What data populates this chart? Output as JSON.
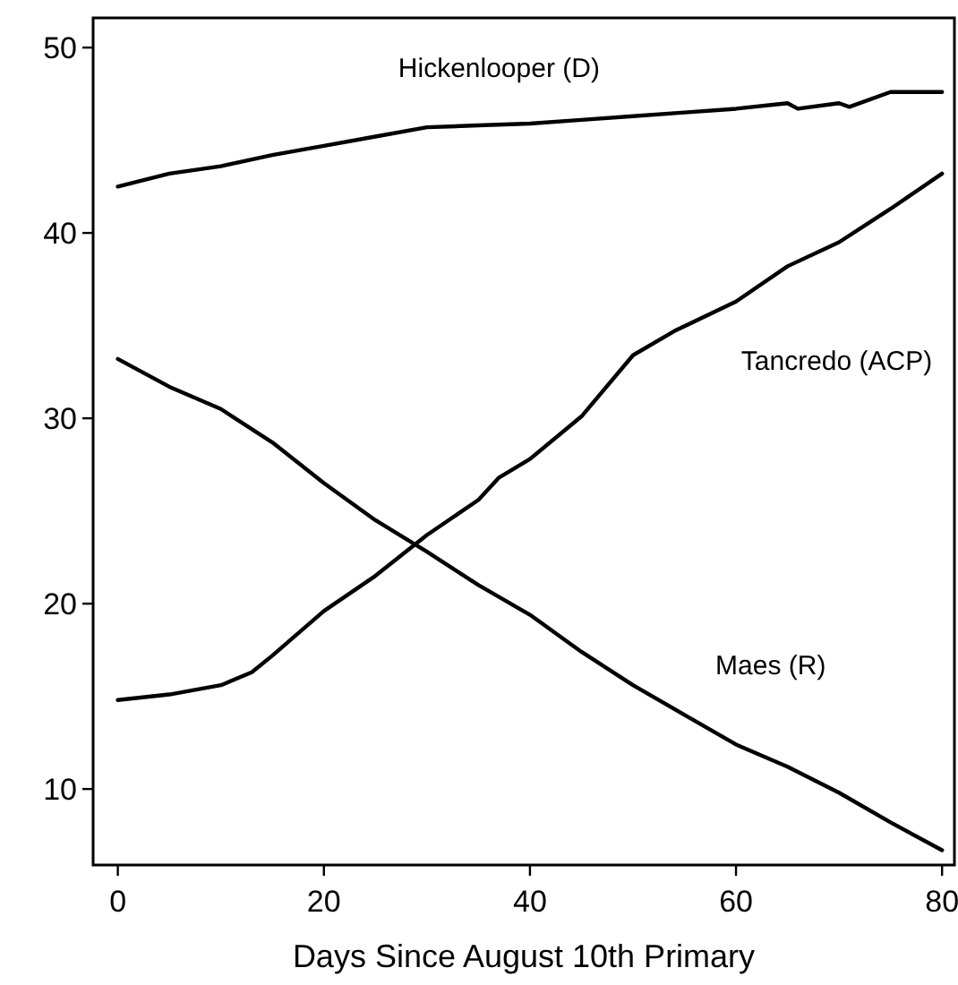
{
  "chart_data": {
    "type": "line",
    "xlabel": "Days Since August 10th Primary",
    "xlim": [
      -2.4,
      81.2
    ],
    "ylim": [
      5.9,
      51.6
    ],
    "xticks": [
      0,
      20,
      40,
      60,
      80
    ],
    "yticks": [
      10,
      20,
      30,
      40,
      50
    ],
    "grid": false,
    "line_style": "solid",
    "marker": "none",
    "series": [
      {
        "name": "Hickenlooper (D)",
        "color": "#000000",
        "x": [
          0,
          5,
          10,
          15,
          20,
          25,
          30,
          35,
          40,
          45,
          50,
          55,
          60,
          65,
          66,
          70,
          71,
          75,
          80
        ],
        "values": [
          42.5,
          43.2,
          43.6,
          44.2,
          44.7,
          45.2,
          45.7,
          45.8,
          45.9,
          46.1,
          46.3,
          46.5,
          46.7,
          47.0,
          46.7,
          47.0,
          46.8,
          47.6,
          47.6
        ]
      },
      {
        "name": "Tancredo (ACP)",
        "color": "#000000",
        "x": [
          0,
          5,
          10,
          13,
          15,
          20,
          25,
          30,
          35,
          37,
          40,
          45,
          50,
          54,
          60,
          65,
          70,
          75,
          80
        ],
        "values": [
          14.8,
          15.1,
          15.6,
          16.3,
          17.2,
          19.6,
          21.5,
          23.7,
          25.6,
          26.8,
          27.8,
          30.1,
          33.4,
          34.7,
          36.3,
          38.2,
          39.5,
          41.3,
          43.2
        ]
      },
      {
        "name": "Maes (R)",
        "color": "#000000",
        "x": [
          0,
          5,
          10,
          15,
          20,
          25,
          30,
          35,
          40,
          45,
          50,
          55,
          60,
          65,
          70,
          75,
          80
        ],
        "values": [
          33.2,
          31.7,
          30.5,
          28.7,
          26.5,
          24.5,
          22.8,
          21.0,
          19.4,
          17.4,
          15.6,
          14.0,
          12.4,
          11.2,
          9.8,
          8.2,
          6.7
        ]
      }
    ]
  }
}
